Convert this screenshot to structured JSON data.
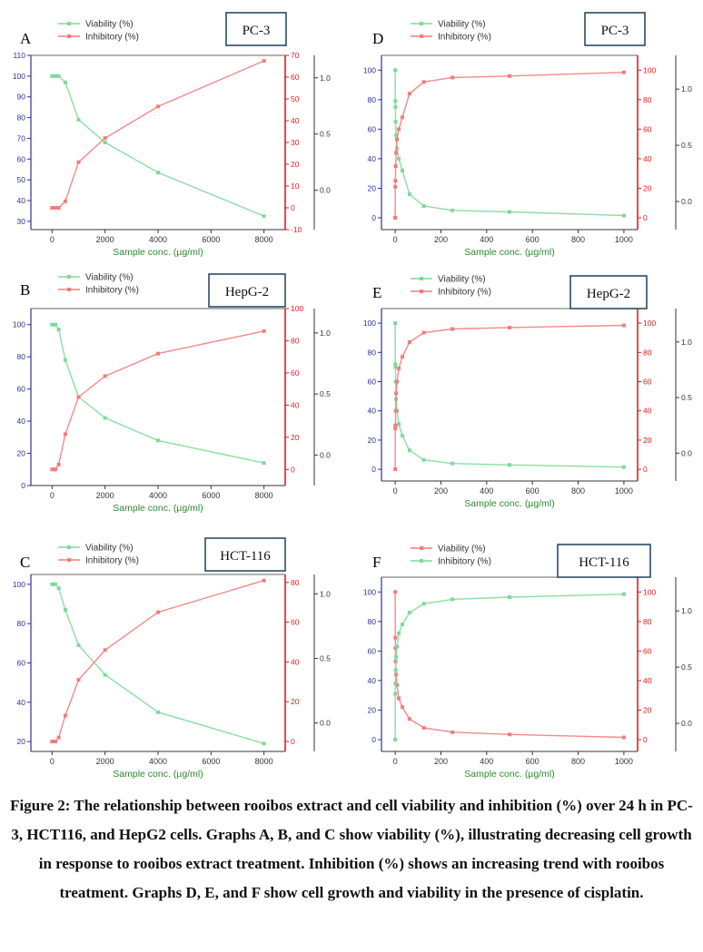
{
  "caption": "Figure 2: The relationship between rooibos extract and cell viability and inhibition (%) over 24 h in PC-3, HCT116, and HepG2 cells. Graphs A, B, and C show viability (%), illustrating decreasing cell growth in response to rooibos extract treatment. Inhibition (%) shows an increasing trend with rooibos treatment. Graphs D, E, and F show cell growth and viability in the presence of cisplatin.",
  "colors": {
    "green": "#7fd99a",
    "red": "#f47c7c",
    "leftAxis": "#2e3192",
    "rightAxis": "#e01e1e",
    "xlabel": "#2e8b2e",
    "boxBorder": "#1f3f5f"
  },
  "chart_data": [
    {
      "panel": "A",
      "cell_line": "PC-3",
      "type": "line",
      "xlabel": "Sample conc. (µg/ml)",
      "xlim": [
        -800,
        8800
      ],
      "xticks": [
        0,
        2000,
        4000,
        6000,
        8000
      ],
      "ylim_left": [
        26,
        110
      ],
      "yticks_left": [
        30,
        40,
        50,
        60,
        70,
        80,
        90,
        100,
        110
      ],
      "ylim_right": [
        -10,
        70
      ],
      "yticks_right": [
        -10,
        0,
        10,
        20,
        30,
        40,
        50,
        60,
        70
      ],
      "ylim_far": [
        -0.35,
        1.2
      ],
      "yticks_far": [
        "0.0",
        "0.5",
        "1.0"
      ],
      "x": [
        0,
        62.5,
        125,
        250,
        500,
        1000,
        2000,
        4000,
        8000
      ],
      "series": [
        {
          "name": "Viability (%)",
          "color": "green",
          "axis": "left",
          "values": [
            100,
            100,
            100,
            100,
            97,
            79,
            68,
            53.5,
            32.5
          ]
        },
        {
          "name": "Inhibitory (%)",
          "color": "red",
          "axis": "right",
          "values": [
            0,
            0,
            0,
            0,
            3,
            21,
            32,
            46.5,
            67.5
          ]
        }
      ]
    },
    {
      "panel": "D",
      "cell_line": "PC-3",
      "type": "line",
      "xlabel": "Sample conc. (µg/ml)",
      "xlim": [
        -60,
        1060
      ],
      "xticks": [
        0,
        200,
        400,
        600,
        800,
        1000
      ],
      "ylim_left": [
        -8,
        110
      ],
      "yticks_left": [
        0,
        20,
        40,
        60,
        80,
        100
      ],
      "ylim_right": [
        -8,
        110
      ],
      "yticks_right": [
        0,
        20,
        40,
        60,
        80,
        100
      ],
      "ylim_far": [
        -0.25,
        1.3
      ],
      "yticks_far": [
        "0.0",
        "0.5",
        "1.0"
      ],
      "x": [
        0,
        0.48,
        0.98,
        1.95,
        3.9,
        7.8,
        15.6,
        31.25,
        62.5,
        125,
        250,
        500,
        1000
      ],
      "series": [
        {
          "name": "Viability (%)",
          "color": "green",
          "axis": "left",
          "values": [
            100,
            79,
            75,
            65,
            56,
            47,
            40,
            32,
            16,
            8,
            5,
            4,
            1.5
          ]
        },
        {
          "name": "Inhibitory (%)",
          "color": "red",
          "axis": "right",
          "values": [
            0,
            21,
            25,
            35,
            44,
            53,
            60,
            68,
            84,
            92,
            95,
            96,
            98.5
          ]
        }
      ]
    },
    {
      "panel": "B",
      "cell_line": "HepG-2",
      "type": "line",
      "xlabel": "Sample conc. (µg/ml)",
      "xlim": [
        -800,
        8800
      ],
      "xticks": [
        0,
        2000,
        4000,
        6000,
        8000
      ],
      "ylim_left": [
        0,
        110
      ],
      "yticks_left": [
        0,
        20,
        40,
        60,
        80,
        100
      ],
      "ylim_right": [
        -10,
        100
      ],
      "yticks_right": [
        0,
        20,
        40,
        60,
        80,
        100
      ],
      "ylim_far": [
        -0.25,
        1.2
      ],
      "yticks_far": [
        "0.0",
        "0.5",
        "1.0"
      ],
      "x": [
        0,
        62.5,
        125,
        250,
        500,
        1000,
        2000,
        4000,
        8000
      ],
      "series": [
        {
          "name": "Viability (%)",
          "color": "green",
          "axis": "left",
          "values": [
            100,
            100,
            100,
            97,
            78,
            55,
            42,
            28,
            14
          ]
        },
        {
          "name": "Inhibitory (%)",
          "color": "red",
          "axis": "right",
          "values": [
            0,
            0,
            0,
            3,
            22,
            45,
            58,
            72,
            86
          ]
        }
      ]
    },
    {
      "panel": "E",
      "cell_line": "HepG-2",
      "type": "line",
      "xlabel": "Sample conc. (µg/ml)",
      "xlim": [
        -60,
        1060
      ],
      "xticks": [
        0,
        200,
        400,
        600,
        800,
        1000
      ],
      "ylim_left": [
        -8,
        110
      ],
      "yticks_left": [
        0,
        20,
        40,
        60,
        80,
        100
      ],
      "ylim_right": [
        -8,
        110
      ],
      "yticks_right": [
        0,
        20,
        40,
        60,
        80,
        100
      ],
      "ylim_far": [
        -0.25,
        1.3
      ],
      "yticks_far": [
        "0.0",
        "0.5",
        "1.0"
      ],
      "x": [
        0,
        0.48,
        0.98,
        1.95,
        3.9,
        7.8,
        15.6,
        31.25,
        62.5,
        125,
        250,
        500,
        1000
      ],
      "series": [
        {
          "name": "Viability (%)",
          "color": "green",
          "axis": "left",
          "values": [
            100,
            72,
            70,
            60,
            48,
            40,
            31,
            23,
            13,
            6.5,
            4,
            3,
            1.5
          ]
        },
        {
          "name": "Inhibitory (%)",
          "color": "red",
          "axis": "right",
          "values": [
            0,
            28,
            30,
            40,
            52,
            60,
            69,
            77,
            87,
            93.5,
            96,
            97,
            98.5
          ]
        }
      ]
    },
    {
      "panel": "C",
      "cell_line": "HCT-116",
      "type": "line",
      "xlabel": "Sample conc. (µg/ml)",
      "xlim": [
        -800,
        8800
      ],
      "xticks": [
        0,
        2000,
        4000,
        6000,
        8000
      ],
      "ylim_left": [
        15,
        105
      ],
      "yticks_left": [
        20,
        40,
        60,
        80,
        100
      ],
      "ylim_right": [
        -5,
        84
      ],
      "yticks_right": [
        0,
        20,
        40,
        60,
        80
      ],
      "ylim_far": [
        -0.22,
        1.15
      ],
      "yticks_far": [
        "0.0",
        "0.5",
        "1.0"
      ],
      "x": [
        0,
        62.5,
        125,
        250,
        500,
        1000,
        2000,
        4000,
        8000
      ],
      "series": [
        {
          "name": "Viability (%)",
          "color": "green",
          "axis": "left",
          "values": [
            100,
            100,
            100,
            98,
            87,
            69,
            54,
            35,
            19
          ]
        },
        {
          "name": "Inhibitory (%)",
          "color": "red",
          "axis": "right",
          "values": [
            0,
            0,
            0,
            2,
            13,
            31,
            46,
            65,
            81
          ]
        }
      ]
    },
    {
      "panel": "F",
      "cell_line": "HCT-116",
      "type": "line",
      "xlabel": "Sample conc. (µg/ml)",
      "xlim": [
        -60,
        1060
      ],
      "xticks": [
        0,
        200,
        400,
        600,
        800,
        1000
      ],
      "ylim_left": [
        -8,
        110
      ],
      "yticks_left": [
        0,
        20,
        40,
        60,
        80,
        100
      ],
      "ylim_right": [
        -8,
        110
      ],
      "yticks_right": [
        0,
        20,
        40,
        60,
        80,
        100
      ],
      "ylim_far": [
        -0.25,
        1.3
      ],
      "yticks_far": [
        "0.0",
        "0.5",
        "1.0"
      ],
      "x": [
        0,
        0.48,
        0.98,
        1.95,
        3.9,
        7.8,
        15.6,
        31.25,
        62.5,
        125,
        250,
        500,
        1000
      ],
      "series": [
        {
          "name": "Viability (%)",
          "color": "red",
          "axis": "right",
          "values": [
            100,
            69,
            62,
            53,
            44,
            37,
            28,
            22,
            14,
            8,
            5,
            3.5,
            1.5
          ]
        },
        {
          "name": "Inhibitory (%)",
          "color": "green",
          "axis": "left",
          "values": [
            0,
            31,
            38,
            47,
            56,
            63,
            72,
            78,
            86,
            92,
            95,
            96.5,
            98.5
          ]
        }
      ]
    }
  ]
}
